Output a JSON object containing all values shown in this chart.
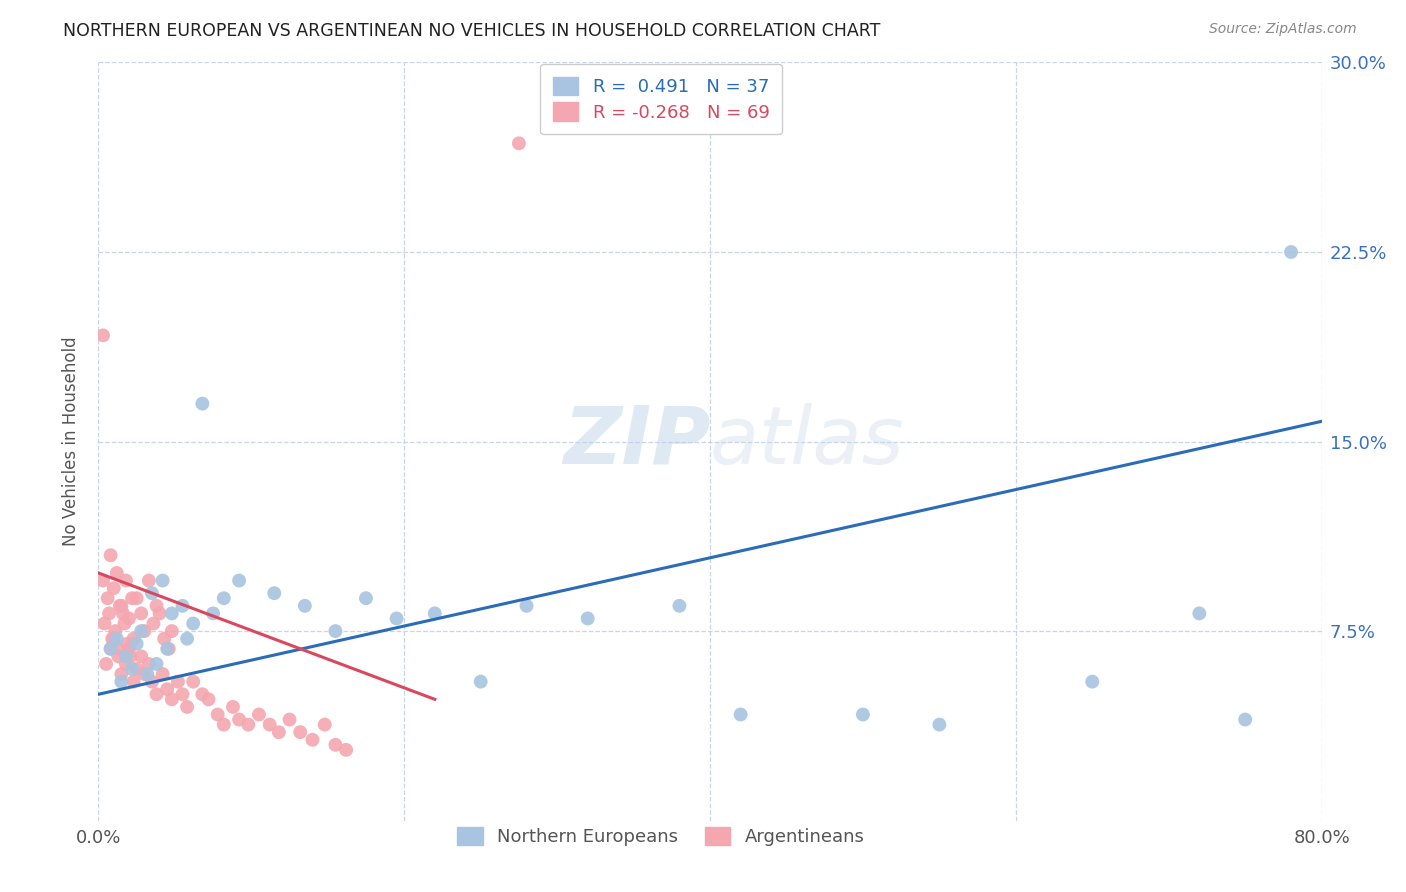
{
  "title": "NORTHERN EUROPEAN VS ARGENTINEAN NO VEHICLES IN HOUSEHOLD CORRELATION CHART",
  "source": "Source: ZipAtlas.com",
  "ylabel": "No Vehicles in Household",
  "xlim": [
    0.0,
    0.8
  ],
  "ylim": [
    0.0,
    0.3
  ],
  "xtick_vals": [
    0.0,
    0.2,
    0.4,
    0.6,
    0.8
  ],
  "xtick_labels": [
    "0.0%",
    "",
    "",
    "",
    "80.0%"
  ],
  "ytick_vals": [
    0.0,
    0.075,
    0.15,
    0.225,
    0.3
  ],
  "ytick_labels_right": [
    "",
    "7.5%",
    "15.0%",
    "22.5%",
    "30.0%"
  ],
  "legend_labels": [
    "Northern Europeans",
    "Argentineans"
  ],
  "blue_R": 0.491,
  "blue_N": 37,
  "pink_R": -0.268,
  "pink_N": 69,
  "blue_color": "#a8c4e0",
  "pink_color": "#f4a7b0",
  "blue_line_color": "#2b6cb8",
  "pink_line_color": "#d9485e",
  "blue_line_x": [
    0.0,
    0.8
  ],
  "blue_line_y": [
    0.05,
    0.158
  ],
  "pink_line_x": [
    0.0,
    0.22
  ],
  "pink_line_y": [
    0.098,
    0.048
  ],
  "watermark_zip": "ZIP",
  "watermark_atlas": "atlas",
  "background_color": "#ffffff",
  "grid_color": "#c8d4e8",
  "blue_x": [
    0.008,
    0.012,
    0.018,
    0.022,
    0.028,
    0.015,
    0.025,
    0.032,
    0.038,
    0.045,
    0.055,
    0.062,
    0.048,
    0.035,
    0.042,
    0.068,
    0.075,
    0.082,
    0.058,
    0.092,
    0.115,
    0.135,
    0.155,
    0.175,
    0.195,
    0.22,
    0.25,
    0.28,
    0.32,
    0.38,
    0.42,
    0.5,
    0.55,
    0.65,
    0.72,
    0.75,
    0.78
  ],
  "blue_y": [
    0.068,
    0.072,
    0.065,
    0.06,
    0.075,
    0.055,
    0.07,
    0.058,
    0.062,
    0.068,
    0.085,
    0.078,
    0.082,
    0.09,
    0.095,
    0.165,
    0.082,
    0.088,
    0.072,
    0.095,
    0.09,
    0.085,
    0.075,
    0.088,
    0.08,
    0.082,
    0.055,
    0.085,
    0.08,
    0.085,
    0.042,
    0.042,
    0.038,
    0.055,
    0.082,
    0.04,
    0.225
  ],
  "pink_x": [
    0.003,
    0.006,
    0.008,
    0.01,
    0.012,
    0.014,
    0.016,
    0.018,
    0.02,
    0.022,
    0.004,
    0.007,
    0.009,
    0.011,
    0.013,
    0.015,
    0.017,
    0.019,
    0.021,
    0.023,
    0.025,
    0.028,
    0.03,
    0.033,
    0.036,
    0.038,
    0.04,
    0.043,
    0.046,
    0.048,
    0.005,
    0.008,
    0.01,
    0.013,
    0.015,
    0.018,
    0.02,
    0.023,
    0.025,
    0.028,
    0.03,
    0.033,
    0.035,
    0.038,
    0.042,
    0.045,
    0.048,
    0.052,
    0.055,
    0.058,
    0.062,
    0.068,
    0.072,
    0.078,
    0.082,
    0.088,
    0.092,
    0.098,
    0.105,
    0.112,
    0.118,
    0.125,
    0.132,
    0.14,
    0.148,
    0.155,
    0.162,
    0.003,
    0.275
  ],
  "pink_y": [
    0.095,
    0.088,
    0.105,
    0.092,
    0.098,
    0.085,
    0.082,
    0.095,
    0.08,
    0.088,
    0.078,
    0.082,
    0.072,
    0.075,
    0.068,
    0.085,
    0.078,
    0.07,
    0.065,
    0.072,
    0.088,
    0.082,
    0.075,
    0.095,
    0.078,
    0.085,
    0.082,
    0.072,
    0.068,
    0.075,
    0.062,
    0.068,
    0.072,
    0.065,
    0.058,
    0.062,
    0.068,
    0.055,
    0.06,
    0.065,
    0.058,
    0.062,
    0.055,
    0.05,
    0.058,
    0.052,
    0.048,
    0.055,
    0.05,
    0.045,
    0.055,
    0.05,
    0.048,
    0.042,
    0.038,
    0.045,
    0.04,
    0.038,
    0.042,
    0.038,
    0.035,
    0.04,
    0.035,
    0.032,
    0.038,
    0.03,
    0.028,
    0.192,
    0.268
  ]
}
